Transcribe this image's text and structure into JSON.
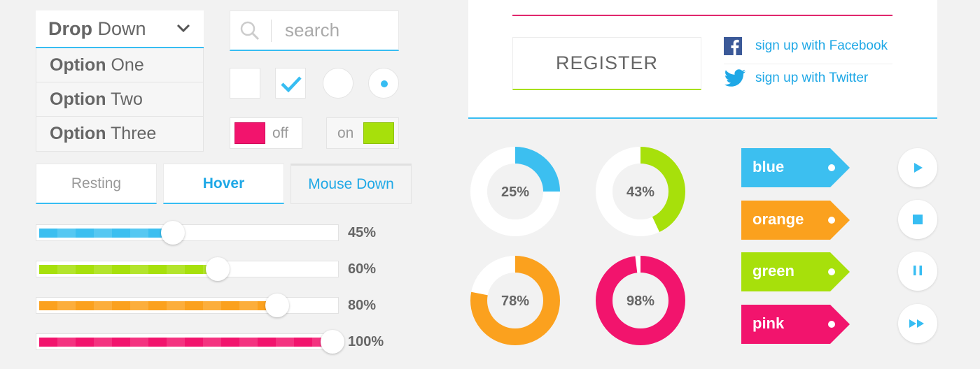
{
  "dropdown": {
    "title_bold": "Drop",
    "title_rest": " Down",
    "options": [
      {
        "bold": "Option",
        "rest": " One"
      },
      {
        "bold": "Option",
        "rest": " Two"
      },
      {
        "bold": "Option",
        "rest": " Three"
      }
    ]
  },
  "search": {
    "placeholder": "search"
  },
  "toggles": {
    "off_label": "off",
    "on_label": "on"
  },
  "states": {
    "resting": "Resting",
    "hover": "Hover",
    "mouse_down": "Mouse Down"
  },
  "sliders": [
    {
      "label": "45%",
      "value": 0.45,
      "color": "#3cbff0"
    },
    {
      "label": "60%",
      "value": 0.6,
      "color": "#a7e00b"
    },
    {
      "label": "80%",
      "value": 0.8,
      "color": "#fba11e"
    },
    {
      "label": "100%",
      "value": 1.0,
      "color": "#f2146d"
    }
  ],
  "register": {
    "button": "REGISTER",
    "facebook": "sign up with Facebook",
    "twitter": "sign up with Twitter"
  },
  "donuts": [
    {
      "label": "25%",
      "value": 25,
      "color": "#3cbff0"
    },
    {
      "label": "43%",
      "value": 43,
      "color": "#a7e00b"
    },
    {
      "label": "78%",
      "value": 78,
      "color": "#fba11e"
    },
    {
      "label": "98%",
      "value": 98,
      "color": "#f2146d"
    }
  ],
  "tags": [
    {
      "label": "blue",
      "color": "#3cbff0"
    },
    {
      "label": "orange",
      "color": "#fba11e"
    },
    {
      "label": "green",
      "color": "#a7e00b"
    },
    {
      "label": "pink",
      "color": "#f2146d"
    }
  ],
  "media": [
    "play-icon",
    "stop-icon",
    "pause-icon",
    "fast-forward-icon"
  ],
  "colors": {
    "accent": "#37bdf2",
    "text": "#666666",
    "link": "#1fa8e6"
  }
}
